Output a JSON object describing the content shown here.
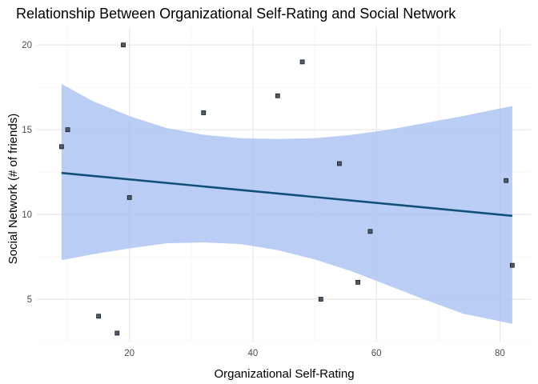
{
  "chart_data": {
    "type": "scatter",
    "title": "Relationship Between Organizational Self-Rating and Social Network",
    "xlabel": "Organizational Self-Rating",
    "ylabel": "Social Network (# of friends)",
    "xlim": [
      5,
      85
    ],
    "ylim": [
      2.5,
      21
    ],
    "x_ticks": [
      20,
      40,
      60,
      80
    ],
    "y_ticks": [
      5,
      10,
      15,
      20
    ],
    "grid": true,
    "legend": "none",
    "points": [
      {
        "x": 9,
        "y": 14
      },
      {
        "x": 10,
        "y": 15
      },
      {
        "x": 15,
        "y": 4
      },
      {
        "x": 18,
        "y": 3
      },
      {
        "x": 19,
        "y": 20
      },
      {
        "x": 20,
        "y": 11
      },
      {
        "x": 32,
        "y": 16
      },
      {
        "x": 44,
        "y": 17
      },
      {
        "x": 48,
        "y": 19
      },
      {
        "x": 51,
        "y": 5
      },
      {
        "x": 54,
        "y": 13
      },
      {
        "x": 57,
        "y": 6
      },
      {
        "x": 59,
        "y": 9
      },
      {
        "x": 81,
        "y": 12
      },
      {
        "x": 82,
        "y": 7
      }
    ],
    "fit_line": {
      "x": [
        9,
        82
      ],
      "y": [
        12.45,
        9.92
      ]
    },
    "confidence_band": {
      "x": [
        9,
        14,
        20,
        26,
        32,
        38,
        44,
        50,
        56,
        62,
        68,
        74,
        82
      ],
      "lower": [
        7.3,
        7.65,
        8.0,
        8.3,
        8.35,
        8.25,
        7.9,
        7.35,
        6.65,
        5.8,
        4.95,
        4.15,
        3.55
      ],
      "upper": [
        17.7,
        16.7,
        15.8,
        15.1,
        14.7,
        14.5,
        14.45,
        14.5,
        14.7,
        15.0,
        15.4,
        15.8,
        16.4
      ]
    },
    "colors": {
      "points": "#4a5d6e",
      "point_outline": "#1a1a1a",
      "fit_line": "#10507a",
      "band": "#a9c0f2",
      "grid_major": "#e5e5e5",
      "grid_minor": "#f2f2f2"
    }
  }
}
